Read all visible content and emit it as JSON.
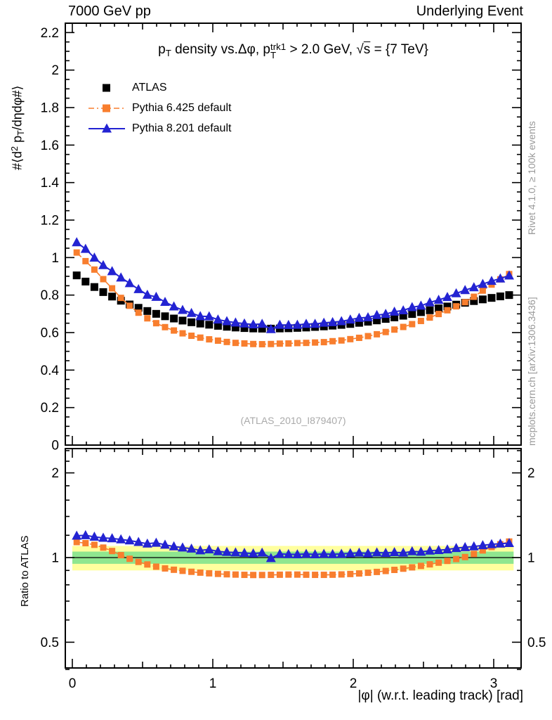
{
  "header": {
    "left": "7000 GeV pp",
    "right": "Underlying Event"
  },
  "title_segments": [
    {
      "text": "p"
    },
    {
      "sub": "T"
    },
    {
      "text": " density vs.Δφ, p"
    },
    {
      "stack": {
        "over": "trk1",
        "under": "T"
      }
    },
    {
      "text": " > 2.0 GeV, "
    },
    {
      "sqrt": "s"
    },
    {
      "text": " = {7 TeV}"
    }
  ],
  "ylabel_segments": [
    {
      "text": "#⟨d"
    },
    {
      "sup": "2"
    },
    {
      "text": " p"
    },
    {
      "sub": "T"
    },
    {
      "text": "/dηdφ#⟩"
    }
  ],
  "xlabel": "|φ| (w.r.t. leading track) [rad]",
  "ratio_ylabel": "Ratio to ATLAS",
  "watermark": "(ATLAS_2010_I879407)",
  "side_notes": {
    "top": "Rivet 4.1.0, ≥ 100k events",
    "bottom": "mcplots.cern.ch [arXiv:1306.3436]"
  },
  "colors": {
    "atlas": "#000000",
    "pythia6": "#f87e2e",
    "pythia8": "#2323d2",
    "band_yellow": "#ffff9e",
    "band_green": "#8fe68f"
  },
  "legend": [
    {
      "label": "ATLAS",
      "marker": "square",
      "line": "none",
      "color_key": "atlas"
    },
    {
      "label": "Pythia 6.425 default",
      "marker": "square",
      "line": "dashdot",
      "color_key": "pythia6"
    },
    {
      "label": "Pythia 8.201 default",
      "marker": "triangle",
      "line": "solid",
      "color_key": "pythia8"
    }
  ],
  "chart_data": [
    {
      "type": "line",
      "panel": "main",
      "title": "pT density vs.Δφ, pT(trk1) > 2.0 GeV, sqrt(s) = 7 TeV",
      "xlabel": "|φ| (w.r.t. leading track) [rad]",
      "ylabel": "#⟨d2 pT/dηdφ#⟩",
      "xlim": [
        -0.05,
        3.195
      ],
      "ylim": [
        0,
        2.25
      ],
      "grid": false,
      "legend_position": "upper-left-inside",
      "x_major_ticks": [
        0,
        1,
        2,
        3
      ],
      "x_tick_labels": [
        "0",
        "1",
        "2",
        "3"
      ],
      "y_tick_labels": [
        {
          "v": 0,
          "l": "0"
        },
        {
          "v": 0.2,
          "l": "0.2"
        },
        {
          "v": 0.4,
          "l": "0.4"
        },
        {
          "v": 0.6,
          "l": "0.6"
        },
        {
          "v": 0.8,
          "l": "0.8"
        },
        {
          "v": 1,
          "l": "1"
        },
        {
          "v": 1.2,
          "l": "1.2"
        },
        {
          "v": 1.4,
          "l": "1.4"
        },
        {
          "v": 1.6,
          "l": "1.6"
        },
        {
          "v": 1.8,
          "l": "1.8"
        },
        {
          "v": 2,
          "l": "2"
        },
        {
          "v": 2.2,
          "l": "2.2"
        }
      ],
      "x": [
        0.031,
        0.094,
        0.157,
        0.22,
        0.283,
        0.346,
        0.408,
        0.471,
        0.534,
        0.597,
        0.66,
        0.723,
        0.785,
        0.848,
        0.911,
        0.974,
        1.037,
        1.1,
        1.162,
        1.225,
        1.288,
        1.351,
        1.414,
        1.477,
        1.539,
        1.602,
        1.665,
        1.728,
        1.791,
        1.853,
        1.916,
        1.979,
        2.042,
        2.105,
        2.168,
        2.231,
        2.293,
        2.356,
        2.419,
        2.482,
        2.545,
        2.608,
        2.67,
        2.733,
        2.796,
        2.859,
        2.922,
        2.985,
        3.047,
        3.11
      ],
      "series": [
        {
          "name": "ATLAS",
          "marker": "square",
          "line": "none",
          "color_key": "atlas",
          "values": [
            0.905,
            0.872,
            0.843,
            0.816,
            0.792,
            0.77,
            0.75,
            0.732,
            0.715,
            0.7,
            0.687,
            0.675,
            0.664,
            0.655,
            0.648,
            0.642,
            0.636,
            0.631,
            0.627,
            0.624,
            0.622,
            0.621,
            0.621,
            0.622,
            0.623,
            0.625,
            0.627,
            0.63,
            0.633,
            0.637,
            0.641,
            0.646,
            0.652,
            0.658,
            0.665,
            0.673,
            0.681,
            0.69,
            0.699,
            0.709,
            0.719,
            0.729,
            0.739,
            0.749,
            0.759,
            0.768,
            0.777,
            0.785,
            0.793,
            0.8
          ]
        },
        {
          "name": "Pythia 6.425 default",
          "marker": "square",
          "line": "dashdot",
          "color_key": "pythia6",
          "values": [
            1.027,
            0.981,
            0.936,
            0.885,
            0.836,
            0.785,
            0.743,
            0.706,
            0.676,
            0.65,
            0.629,
            0.611,
            0.596,
            0.583,
            0.573,
            0.564,
            0.557,
            0.55,
            0.545,
            0.542,
            0.539,
            0.538,
            0.539,
            0.541,
            0.542,
            0.544,
            0.545,
            0.547,
            0.549,
            0.554,
            0.558,
            0.565,
            0.572,
            0.581,
            0.591,
            0.603,
            0.616,
            0.63,
            0.645,
            0.662,
            0.68,
            0.699,
            0.719,
            0.74,
            0.762,
            0.791,
            0.824,
            0.856,
            0.884,
            0.912
          ]
        },
        {
          "name": "Pythia 8.201 default",
          "marker": "triangle",
          "line": "solid",
          "color_key": "pythia8",
          "values": [
            1.081,
            1.046,
            0.999,
            0.959,
            0.927,
            0.893,
            0.863,
            0.831,
            0.801,
            0.79,
            0.763,
            0.739,
            0.72,
            0.704,
            0.687,
            0.686,
            0.669,
            0.66,
            0.653,
            0.648,
            0.643,
            0.646,
            0.618,
            0.641,
            0.64,
            0.641,
            0.646,
            0.646,
            0.652,
            0.655,
            0.66,
            0.669,
            0.678,
            0.681,
            0.693,
            0.699,
            0.711,
            0.718,
            0.735,
            0.743,
            0.761,
            0.774,
            0.789,
            0.809,
            0.826,
            0.841,
            0.859,
            0.875,
            0.888,
            0.904
          ]
        }
      ]
    },
    {
      "type": "line",
      "panel": "ratio",
      "ylabel": "Ratio to ATLAS",
      "yscale": "log",
      "ylim": [
        0.405,
        2.44
      ],
      "ref_line": 1,
      "bands": [
        {
          "lo": 0.9,
          "hi": 1.1,
          "color_key": "band_yellow"
        },
        {
          "lo": 0.95,
          "hi": 1.05,
          "color_key": "band_green"
        }
      ],
      "band_xrange": [
        0,
        3.1416
      ],
      "y_tick_labels": [
        {
          "v": 0.5,
          "l": "0.5"
        },
        {
          "v": 1,
          "l": "1"
        },
        {
          "v": 2,
          "l": "2"
        }
      ],
      "y_minor_ticks": [
        0.4,
        0.6,
        0.7,
        0.8,
        0.9,
        1.2,
        1.4,
        1.6,
        1.8,
        2.2,
        2.4
      ],
      "series": [
        {
          "name": "Pythia 6.425 default / ATLAS",
          "marker": "square",
          "line": "dashdot",
          "color_key": "pythia6",
          "values": [
            1.135,
            1.125,
            1.11,
            1.085,
            1.055,
            1.02,
            0.99,
            0.965,
            0.945,
            0.928,
            0.915,
            0.905,
            0.897,
            0.89,
            0.884,
            0.879,
            0.875,
            0.872,
            0.87,
            0.868,
            0.867,
            0.867,
            0.868,
            0.869,
            0.87,
            0.87,
            0.869,
            0.868,
            0.868,
            0.869,
            0.871,
            0.874,
            0.878,
            0.883,
            0.889,
            0.896,
            0.904,
            0.913,
            0.923,
            0.934,
            0.946,
            0.959,
            0.973,
            0.988,
            1.004,
            1.03,
            1.06,
            1.09,
            1.115,
            1.14
          ]
        },
        {
          "name": "Pythia 8.201 default / ATLAS",
          "marker": "triangle",
          "line": "solid",
          "color_key": "pythia8",
          "values": [
            1.195,
            1.2,
            1.185,
            1.175,
            1.17,
            1.16,
            1.15,
            1.135,
            1.12,
            1.128,
            1.11,
            1.095,
            1.085,
            1.075,
            1.06,
            1.068,
            1.052,
            1.046,
            1.042,
            1.038,
            1.034,
            1.04,
            0.995,
            1.03,
            1.028,
            1.026,
            1.03,
            1.026,
            1.03,
            1.028,
            1.03,
            1.035,
            1.04,
            1.035,
            1.042,
            1.038,
            1.044,
            1.04,
            1.052,
            1.048,
            1.058,
            1.062,
            1.068,
            1.08,
            1.088,
            1.095,
            1.105,
            1.115,
            1.12,
            1.125
          ]
        }
      ]
    }
  ]
}
